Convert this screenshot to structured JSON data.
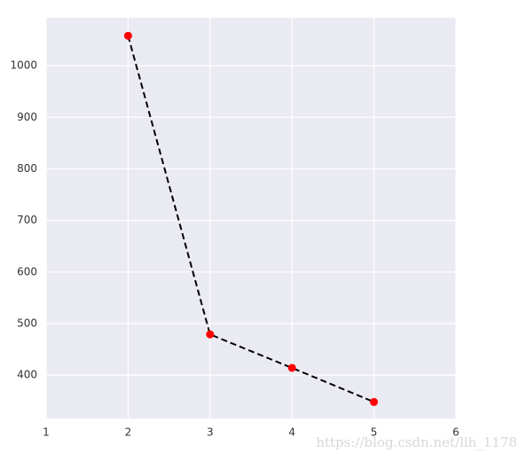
{
  "chart_data": {
    "type": "line",
    "x": [
      2,
      3,
      4,
      5
    ],
    "series": [
      {
        "values": [
          1058,
          479,
          414,
          348
        ],
        "color": "#000000",
        "marker_color": "#ff0000"
      }
    ],
    "xlim": [
      1,
      6
    ],
    "xticks": [
      1,
      2,
      3,
      4,
      5,
      6
    ],
    "ylim": [
      316,
      1093
    ],
    "yticks": [
      400,
      500,
      600,
      700,
      800,
      900,
      1000
    ],
    "grid": true,
    "watermark": "https://blog.csdn.net/llh_1178"
  }
}
